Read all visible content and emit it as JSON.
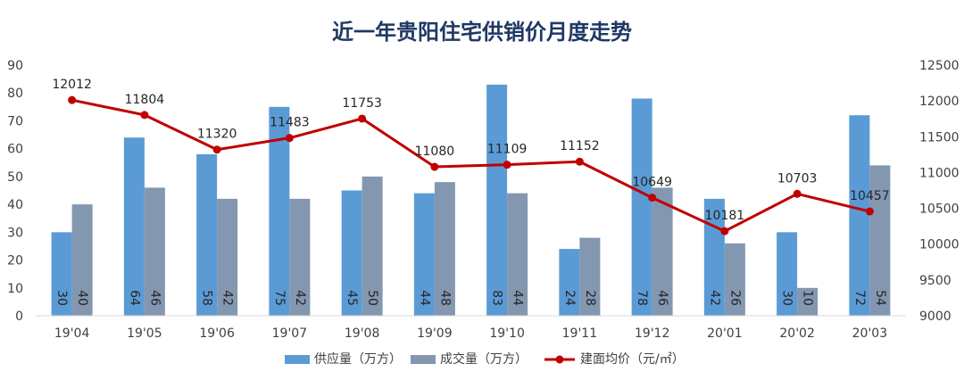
{
  "chart_data": {
    "type": "bar",
    "title": "近一年贵阳住宅供销价月度走势",
    "categories": [
      "19'04",
      "19'05",
      "19'06",
      "19'07",
      "19'08",
      "19'09",
      "19'10",
      "19'11",
      "19'12",
      "20'01",
      "20'02",
      "20'03"
    ],
    "series": [
      {
        "name": "供应量（万方）",
        "type": "bar",
        "axis": "left",
        "color": "#5b9bd5",
        "values": [
          30,
          64,
          58,
          75,
          45,
          44,
          83,
          24,
          78,
          42,
          30,
          72
        ]
      },
      {
        "name": "成交量（万方）",
        "type": "bar",
        "axis": "left",
        "color": "#8497b0",
        "values": [
          40,
          46,
          42,
          42,
          50,
          48,
          44,
          28,
          46,
          26,
          10,
          54
        ]
      },
      {
        "name": "建面均价（元/㎡）",
        "type": "line",
        "axis": "right",
        "color": "#c00000",
        "values": [
          12012,
          11804,
          11320,
          11483,
          11753,
          11080,
          11109,
          11152,
          10649,
          10181,
          10703,
          10457
        ]
      }
    ],
    "y_left": {
      "min": 0,
      "max": 90,
      "ticks": [
        "0",
        "10",
        "20",
        "30",
        "40",
        "50",
        "60",
        "70",
        "80",
        "90"
      ]
    },
    "y_right": {
      "min": 9000,
      "max": 12500,
      "ticks": [
        "9000",
        "9500",
        "10000",
        "10500",
        "11000",
        "11500",
        "12000",
        "12500"
      ]
    },
    "grid": false,
    "legend": "bottom"
  }
}
